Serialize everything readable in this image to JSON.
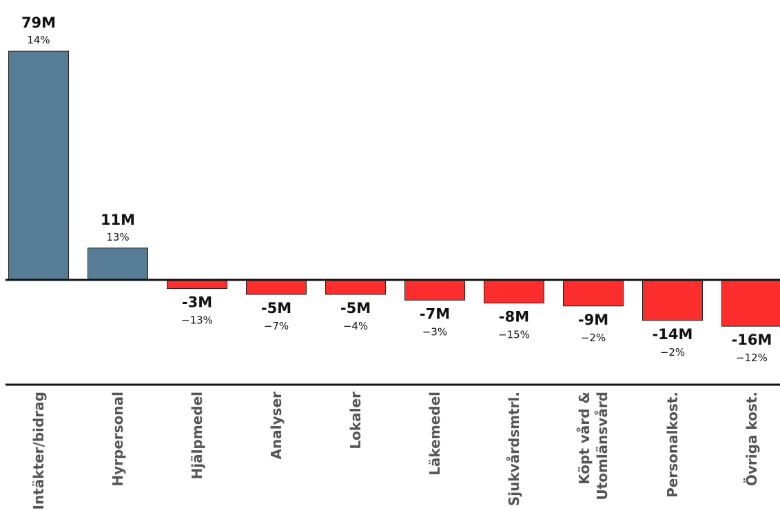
{
  "chart_data": {
    "type": "bar",
    "title": "",
    "xlabel": "",
    "ylabel": "",
    "ylim": [
      -16,
      79
    ],
    "grid": false,
    "categories": [
      "Intäkter/bidrag",
      "Hyrpersonal",
      "Hjälpmedel",
      "Analyser",
      "Lokaler",
      "Läkemedel",
      "Sjukvårdsmtrl.",
      "Köpt vård & Utomlänsvård",
      "Personalkost.",
      "Övriga kost."
    ],
    "category_lines": [
      [
        "Intäkter/bidrag"
      ],
      [
        "Hyrpersonal"
      ],
      [
        "Hjälpmedel"
      ],
      [
        "Analyser"
      ],
      [
        "Lokaler"
      ],
      [
        "Läkemedel"
      ],
      [
        "Sjukvårdsmtrl."
      ],
      [
        "Köpt vård &",
        "Utomlänsvård"
      ],
      [
        "Personalkost."
      ],
      [
        "Övriga kost."
      ]
    ],
    "values": [
      79,
      11,
      -3,
      -5,
      -5,
      -7,
      -8,
      -9,
      -14,
      -16
    ],
    "value_labels": [
      "79M",
      "11M",
      "-3M",
      "-5M",
      "-5M",
      "-7M",
      "-8M",
      "-9M",
      "-14M",
      "-16M"
    ],
    "percent_labels": [
      "14%",
      "13%",
      "−13%",
      "−7%",
      "−4%",
      "−3%",
      "−15%",
      "−2%",
      "−2%",
      "−12%"
    ],
    "colors": {
      "positive": "#577d96",
      "negative": "#fc2d2d",
      "axis": "#111111",
      "category_text": "#555555"
    }
  }
}
